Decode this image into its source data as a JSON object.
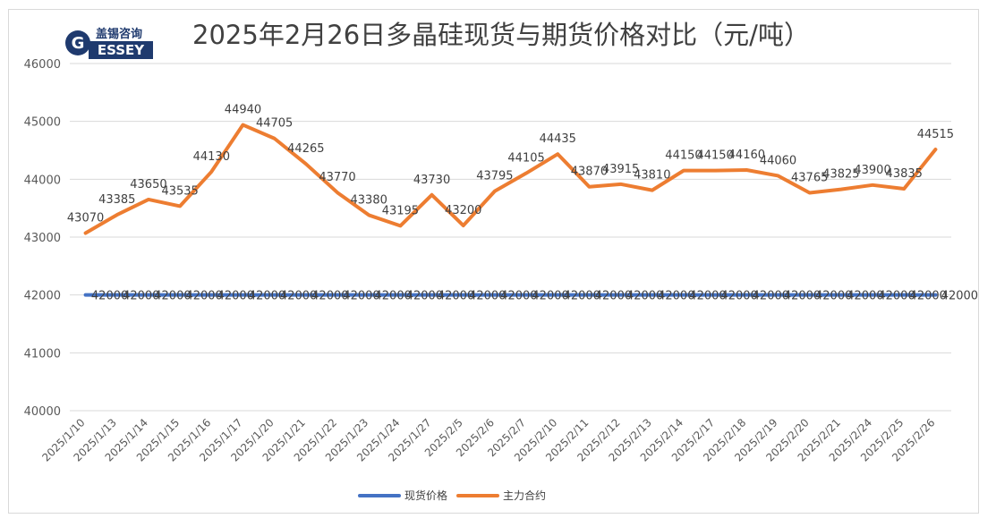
{
  "title": "2025年2月26日多晶硅现货与期货价格对比（元/吨）",
  "logo": {
    "text_cn": "盖锡咨询",
    "text_en": "GESSEY"
  },
  "colors": {
    "spot": "#4472C4",
    "futures": "#ED7D31",
    "grid": "#d9d9d9",
    "text": "#595959"
  },
  "chart_data": {
    "type": "line",
    "title": "2025年2月26日多晶硅现货与期货价格对比（元/吨）",
    "categories": [
      "2025/1/10",
      "2025/1/13",
      "2025/1/14",
      "2025/1/15",
      "2025/1/16",
      "2025/1/17",
      "2025/1/20",
      "2025/1/21",
      "2025/1/22",
      "2025/1/23",
      "2025/1/24",
      "2025/1/27",
      "2025/2/5",
      "2025/2/6",
      "2025/2/7",
      "2025/2/10",
      "2025/2/11",
      "2025/2/12",
      "2025/2/13",
      "2025/2/14",
      "2025/2/17",
      "2025/2/18",
      "2025/2/19",
      "2025/2/20",
      "2025/2/21",
      "2025/2/24",
      "2025/2/25",
      "2025/2/26"
    ],
    "series": [
      {
        "name": "现货价格",
        "values": [
          42000,
          42000,
          42000,
          42000,
          42000,
          42000,
          42000,
          42000,
          42000,
          42000,
          42000,
          42000,
          42000,
          42000,
          42000,
          42000,
          42000,
          42000,
          42000,
          42000,
          42000,
          42000,
          42000,
          42000,
          42000,
          42000,
          42000,
          42000
        ]
      },
      {
        "name": "主力合约",
        "values": [
          43070,
          43385,
          43650,
          43535,
          44130,
          44940,
          44705,
          44265,
          43770,
          43380,
          43195,
          43730,
          43200,
          43795,
          44105,
          44435,
          43870,
          43915,
          43810,
          44150,
          44150,
          44160,
          44060,
          43765,
          43825,
          43900,
          43835,
          44515
        ]
      }
    ],
    "ylim": [
      40000,
      46000
    ],
    "yticks": [
      40000,
      41000,
      42000,
      43000,
      44000,
      45000,
      46000
    ],
    "grid": true,
    "legend": "bottom"
  }
}
